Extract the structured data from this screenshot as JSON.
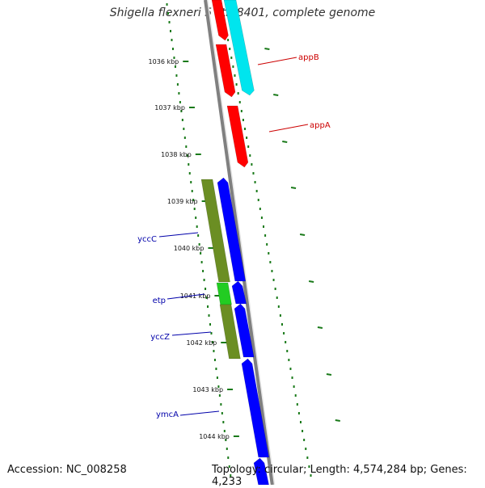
{
  "title": "Shigella flexneri 5 str. 8401, complete genome",
  "footer": {
    "accession": "Accession: NC_008258",
    "stats": "Topology: circular; Length: 4,574,284 bp; Genes: 4,233"
  },
  "ticks": [
    "1036 kbp",
    "1037 kbp",
    "1038 kbp",
    "1039 kbp",
    "1040 kbp",
    "1041 kbp",
    "1042 kbp",
    "1043 kbp",
    "1044 kbp"
  ],
  "gene_labels": [
    "appB",
    "appA",
    "yccC",
    "etp",
    "yccZ",
    "ymcA"
  ],
  "colors": {
    "backbone": "#808080",
    "tick_mark": "#1a7a1a",
    "forward_gene_label": "#cc0000",
    "reverse_gene_label": "#0000aa",
    "appB_appA": "#ff0000",
    "appB_cyan_feature": "#00e5ee",
    "blue_genes": "#0000ff",
    "olive_feature": "#6b8e23",
    "green_feature": "#22cc22"
  }
}
